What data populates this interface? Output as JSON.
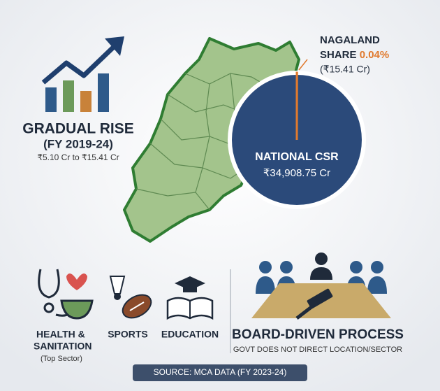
{
  "left_panel": {
    "title": "GRADUAL RISE",
    "period": "(FY 2019-24)",
    "range": "₹5.10 Cr to ₹15.41 Cr"
  },
  "share_callout": {
    "line1": "NAGALAND",
    "line2": "SHARE",
    "share": {
      "value": 0.04,
      "label": "0.04%"
    },
    "amount": "(₹15.41 Cr)"
  },
  "national": {
    "label": "NATIONAL CSR",
    "amount": "₹34,908.75 Cr"
  },
  "sectors": [
    {
      "lines": [
        "HEALTH &",
        "SANITATION"
      ],
      "note": "(Top Sector)"
    },
    {
      "lines": [
        "SPORTS"
      ]
    },
    {
      "lines": [
        "EDUCATION"
      ]
    }
  ],
  "process": {
    "title": "BOARD-DRIVEN PROCESS",
    "subtitle": "GOVT DOES NOT DIRECT LOCATION/SECTOR"
  },
  "footer": "SOURCE: MCA DATA (FY 2023-24)"
}
